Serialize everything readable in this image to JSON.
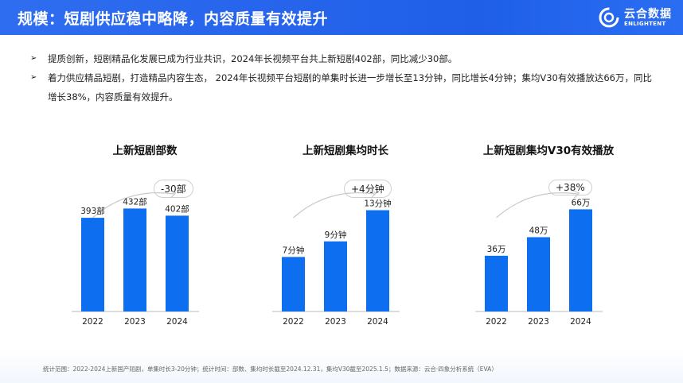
{
  "header": {
    "title": "规模：短剧供应稳中略降，内容质量有效提升",
    "logo_cn": "云合数据",
    "logo_en": "ENLIGHTENT"
  },
  "bullets": [
    "提质创新，短剧精品化发展已成为行业共识，2024年长视频平台共上新短剧402部，同比减少30部。",
    "着力供应精品短剧，打造精品内容生态， 2024年长视频平台短剧的单集时长进一步增长至13分钟，同比增长4分钟；集均V30有效播放达66万，同比增长38%，内容质量有效提升。"
  ],
  "footer": "统计范围：2022-2024上新国产短剧，单集时长3-20分钟；统计时间：部数、集均时长截至2024.12.31，集均V30截至2025.1.5；数据来源：云合·四象分析系统（EVA）",
  "colors": {
    "bar": "#0d6ef0",
    "header": "#1f5fe8"
  },
  "chart_data": [
    {
      "type": "bar",
      "title": "上新短剧部数",
      "categories": [
        "2022",
        "2023",
        "2024"
      ],
      "values": [
        393,
        432,
        402
      ],
      "data_labels": [
        "393部",
        "432部",
        "402部"
      ],
      "change": "-30部",
      "ylim": [
        0,
        500
      ]
    },
    {
      "type": "bar",
      "title": "上新短剧集均时长",
      "categories": [
        "2022",
        "2023",
        "2024"
      ],
      "values": [
        7,
        9,
        13
      ],
      "data_labels": [
        "7分钟",
        "9分钟",
        "13分钟"
      ],
      "change": "+4分钟",
      "ylim": [
        0,
        15.3
      ]
    },
    {
      "type": "bar",
      "title": "上新短剧集均V30有效播放",
      "categories": [
        "2022",
        "2023",
        "2024"
      ],
      "values": [
        36,
        48,
        66
      ],
      "data_labels": [
        "36万",
        "48万",
        "66万"
      ],
      "change": "+38%",
      "ylim": [
        0,
        77
      ]
    }
  ]
}
